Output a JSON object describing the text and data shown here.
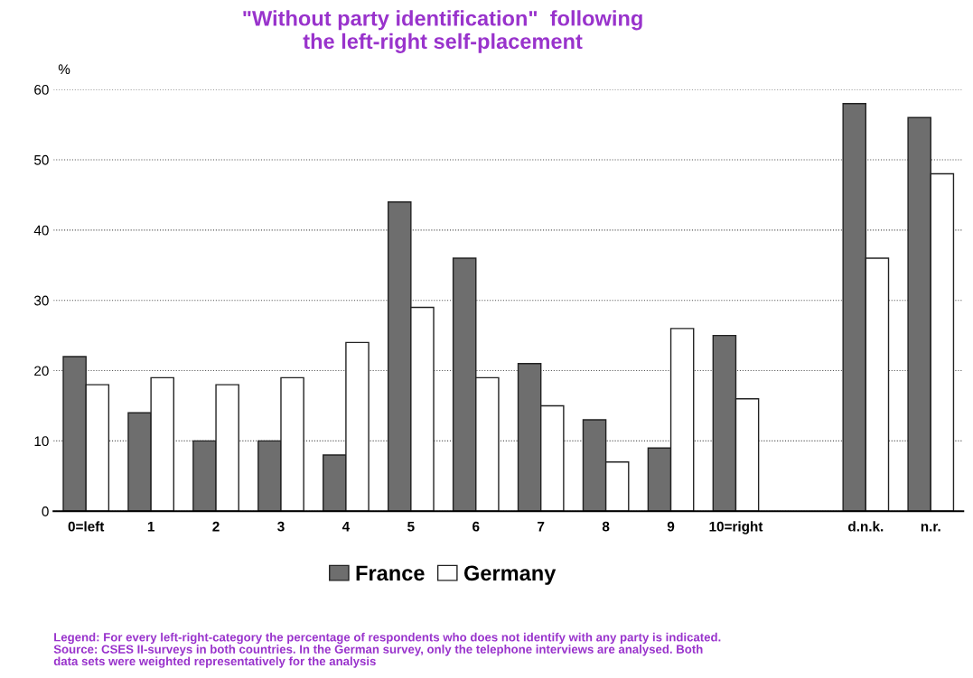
{
  "chart_data": {
    "type": "bar",
    "title": "\"Without party identification\"  following\nthe left-right self-placement",
    "ylabel": "%",
    "categories": [
      "0=left",
      "1",
      "2",
      "3",
      "4",
      "5",
      "6",
      "7",
      "8",
      "9",
      "10=right",
      null,
      "d.n.k.",
      "n.r."
    ],
    "series": [
      {
        "name": "France",
        "color": "#6e6e6e",
        "values": [
          22,
          14,
          10,
          10,
          8,
          44,
          36,
          21,
          13,
          9,
          25,
          null,
          58,
          56
        ]
      },
      {
        "name": "Germany",
        "color": "#ffffff",
        "values": [
          18,
          19,
          18,
          19,
          24,
          29,
          19,
          15,
          7,
          26,
          16,
          null,
          36,
          48
        ]
      }
    ],
    "ylim": [
      0,
      60
    ],
    "yticks": [
      0,
      10,
      20,
      30,
      40,
      50,
      60
    ],
    "grid": "y",
    "legend": "bottom",
    "annotations": [
      "Legend: For every left-right-category the percentage of respondents who does not identify with any party is indicated.\nSource: CSES II-surveys in both countries. In the German survey, only the telephone interviews are analysed. Both\ndata sets were weighted representatively for the analysis"
    ]
  }
}
